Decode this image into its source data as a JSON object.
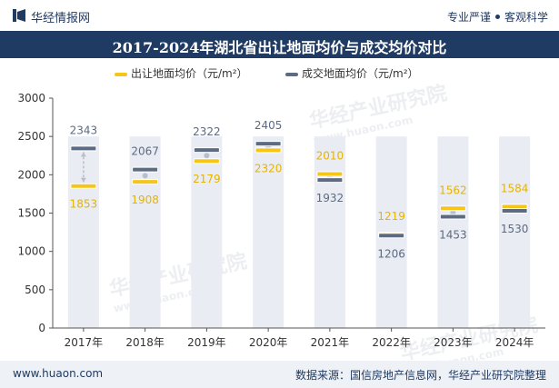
{
  "header": {
    "brand": "华经情报网",
    "slogan_left": "专业严谨",
    "slogan_right": "客观科学"
  },
  "title": "2017-2024年湖北省出让地面均价与成交均价对比",
  "footer": {
    "url": "www.huaon.com",
    "source": "数据来源：国信房地产信息网，华经产业研究院整理"
  },
  "watermark": {
    "text": "华经产业研究院",
    "url": "www.huaon.com"
  },
  "colors": {
    "navy": "#1f3a63",
    "series1": "#f5c518",
    "series2": "#5d6b82",
    "column": "#e9ecf3"
  },
  "chart_data": {
    "type": "line",
    "categories": [
      "2017年",
      "2018年",
      "2019年",
      "2020年",
      "2021年",
      "2022年",
      "2023年",
      "2024年"
    ],
    "series": [
      {
        "name": "出让地面均价（元/m²）",
        "values": [
          1853,
          1908,
          2179,
          2320,
          2010,
          1219,
          1562,
          1584
        ]
      },
      {
        "name": "成交地面均价（元/m²）",
        "values": [
          2343,
          2067,
          2322,
          2405,
          1932,
          1206,
          1453,
          1530
        ]
      }
    ],
    "ylim": [
      0,
      3000
    ],
    "yticks": [
      0,
      500,
      1000,
      1500,
      2000,
      2500,
      3000
    ],
    "legend_position": "top-center",
    "grid": false
  }
}
